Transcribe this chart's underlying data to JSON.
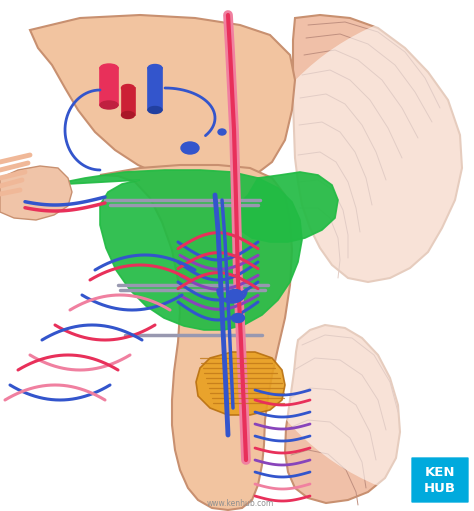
{
  "bg_color": "#ffffff",
  "brainstem_color": "#f2c4a0",
  "brainstem_outline": "#c89070",
  "tegmentum_color": "#22bb44",
  "cerebellum_color": "#f0c0a8",
  "cerebellum_outline": "#c89070",
  "cerebellum_fold_color": "#c09080",
  "red_color": "#e8305a",
  "pink_color": "#f080a0",
  "blue_color": "#3355cc",
  "purple_color": "#8844bb",
  "orange_color": "#e8a020",
  "gray_color": "#9898b0",
  "kenhub_blue": "#00aadd",
  "watermark": "www.kenhub.com",
  "white": "#ffffff"
}
